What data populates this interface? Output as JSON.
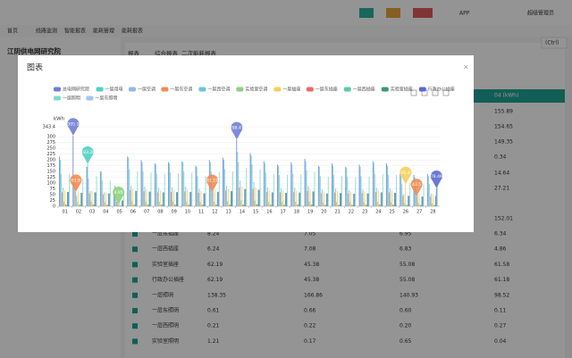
{
  "header": {
    "nav_tabs": [
      "首页",
      "线路监测",
      "智能报表",
      "能耗管理",
      "能耗报表"
    ],
    "app": "APP",
    "user": "超级管理员"
  },
  "sidebar": {
    "title": "江阴供电网研究院"
  },
  "tabs": [
    "报表",
    "综合报表",
    "二次能耗报表"
  ],
  "export": "(Ctrl)",
  "table": {
    "header_last": "04 (kWh)",
    "top_values": [
      "155.89",
      "154.65",
      "149.35",
      "0.34",
      "14.64",
      "27.21",
      "152.01"
    ],
    "rows": [
      [
        "一层东插座",
        "8.24",
        "7.05",
        "6.95",
        "6.34"
      ],
      [
        "一层西插座",
        "6.24",
        "7.08",
        "6.83",
        "4.86"
      ],
      [
        "实验室插座",
        "62.19",
        "45.38",
        "55.08",
        "61.58"
      ],
      [
        "行政办公插座",
        "62.19",
        "45.38",
        "55.08",
        "61.18"
      ],
      [
        "一层照明",
        "138.35",
        "166.86",
        "140.93",
        "98.52"
      ],
      [
        "一层东照明",
        "0.61",
        "0.66",
        "0.60",
        "0.11"
      ],
      [
        "一层西照明",
        "0.21",
        "0.22",
        "0.20",
        "0.27"
      ],
      [
        "实验室照明",
        "1.21",
        "0.17",
        "0.65",
        "0.04"
      ]
    ]
  },
  "modal": {
    "title": "图表"
  },
  "chart_data": {
    "type": "bar",
    "y_label": "kWh",
    "categories": [
      "01",
      "02",
      "03",
      "04",
      "05",
      "06",
      "07",
      "08",
      "09",
      "10",
      "11",
      "12",
      "13",
      "14",
      "15",
      "16",
      "17",
      "18",
      "19",
      "20",
      "21",
      "22",
      "23",
      "24",
      "25",
      "26",
      "27",
      "28"
    ],
    "ylim": [
      0,
      343.4
    ],
    "yticks": [
      0,
      25,
      50,
      75,
      100,
      125,
      150,
      175,
      200,
      225,
      250,
      275,
      300,
      343.4
    ],
    "grid": true,
    "series": [
      {
        "name": "总电网研究院",
        "color": "#6f7dd6",
        "values": [
          215,
          305.1,
          170,
          150,
          70,
          215,
          200,
          185,
          190,
          195,
          175,
          200,
          210,
          288.47,
          230,
          195,
          180,
          190,
          205,
          175,
          185,
          170,
          180,
          195,
          185,
          140,
          135,
          140
        ]
      },
      {
        "name": "一层用电",
        "color": "#4fd1c5",
        "values": [
          200,
          130,
          183.26,
          150,
          90,
          210,
          190,
          180,
          185,
          190,
          170,
          190,
          200,
          235,
          220,
          185,
          175,
          180,
          195,
          170,
          175,
          165,
          170,
          185,
          175,
          130,
          125,
          130
        ]
      },
      {
        "name": "一层空调",
        "color": "#8fb8ec",
        "values": [
          140,
          100,
          120,
          110,
          40,
          160,
          150,
          140,
          145,
          150,
          130,
          150,
          160,
          190,
          180,
          145,
          135,
          140,
          155,
          130,
          135,
          125,
          130,
          140,
          135,
          95,
          90,
          95
        ]
      },
      {
        "name": "一层东空调",
        "color": "#f28c52",
        "values": [
          60,
          61.8,
          55,
          50,
          20,
          70,
          65,
          60,
          62,
          64,
          58,
          61.19,
          68,
          80,
          75,
          62,
          60,
          61,
          66,
          57,
          59,
          55,
          57,
          62,
          60,
          45,
          43.5,
          42
        ]
      },
      {
        "name": "一层西空调",
        "color": "#6cc3e0",
        "values": [
          80,
          45,
          65,
          60,
          20,
          90,
          85,
          80,
          82,
          85,
          75,
          86,
          90,
          110,
          105,
          82,
          78,
          80,
          88,
          73,
          76,
          70,
          73,
          80,
          77,
          52,
          50,
          53
        ]
      },
      {
        "name": "实验室空调",
        "color": "#8ed17b",
        "values": [
          20,
          18,
          19,
          17,
          8.95,
          21,
          20,
          19,
          20,
          20,
          18,
          20,
          21,
          25,
          24,
          19,
          18,
          19,
          20,
          17,
          18,
          17,
          17,
          19,
          18,
          14,
          13,
          14
        ]
      },
      {
        "name": "一层插座",
        "color": "#f5cf5a",
        "values": [
          70,
          65,
          68,
          60,
          30,
          75,
          72,
          70,
          71,
          72,
          66,
          73,
          76,
          85,
          82,
          70,
          68,
          69,
          74,
          65,
          67,
          63,
          65,
          70,
          68,
          95.4,
          50,
          52
        ]
      },
      {
        "name": "一层东插座",
        "color": "#ea6a6a",
        "values": [
          8,
          8,
          8,
          7,
          4,
          8,
          8,
          8,
          8,
          8,
          7,
          8,
          8,
          9,
          9,
          8,
          7,
          8,
          8,
          7,
          7,
          7,
          7,
          8,
          7,
          6,
          6,
          6
        ]
      },
      {
        "name": "一层西插座",
        "color": "#5bc8b0",
        "values": [
          7,
          7,
          7,
          6,
          3,
          7,
          7,
          7,
          7,
          7,
          6,
          7,
          7,
          8,
          8,
          7,
          6,
          7,
          7,
          6,
          6,
          6,
          6,
          7,
          6,
          5,
          5,
          5
        ]
      },
      {
        "name": "实验室插座",
        "color": "#3a9a6a",
        "values": [
          62,
          58,
          60,
          55,
          25,
          66,
          63,
          60,
          61,
          62,
          56,
          62,
          65,
          74,
          71,
          60,
          58,
          59,
          64,
          55,
          57,
          54,
          55,
          60,
          58,
          45,
          42,
          44
        ]
      },
      {
        "name": "行政办公插座",
        "color": "#5b6ad0",
        "values": [
          62,
          58,
          60,
          55,
          25,
          66,
          63,
          60,
          61,
          62,
          56,
          62,
          65,
          74,
          71,
          60,
          58,
          59,
          64,
          55,
          57,
          54,
          55,
          60,
          58,
          45,
          42,
          78.49
        ]
      },
      {
        "name": "一层照明",
        "color": "#7fd8d0",
        "values": [
          140,
          120,
          130,
          110,
          60,
          150,
          145,
          140,
          142,
          145,
          130,
          146,
          150,
          166,
          160,
          140,
          135,
          138,
          148,
          128,
          132,
          125,
          128,
          140,
          135,
          100,
          95,
          98
        ]
      },
      {
        "name": "一层东照明",
        "color": "#9ec7f0",
        "values": [
          0.6,
          0.6,
          0.6,
          0.6,
          0.3,
          0.6,
          0.6,
          0.6,
          0.6,
          0.6,
          0.6,
          0.6,
          0.6,
          0.7,
          0.7,
          0.6,
          0.6,
          0.6,
          0.6,
          0.6,
          0.6,
          0.6,
          0.6,
          0.6,
          0.6,
          0.5,
          0.5,
          0.5
        ]
      }
    ],
    "markers": [
      {
        "series": "总电网研究院",
        "category": "02"
      },
      {
        "series": "一层用电",
        "category": "03"
      },
      {
        "series": "一层东空调",
        "category": "02"
      },
      {
        "series": "实验室空调",
        "category": "05"
      },
      {
        "series": "一层东空调",
        "category": "12"
      },
      {
        "series": "总电网研究院",
        "category": "14"
      },
      {
        "series": "一层插座",
        "category": "26"
      },
      {
        "series": "一层东空调",
        "category": "27"
      },
      {
        "series": "行政办公插座",
        "category": "28"
      }
    ]
  }
}
